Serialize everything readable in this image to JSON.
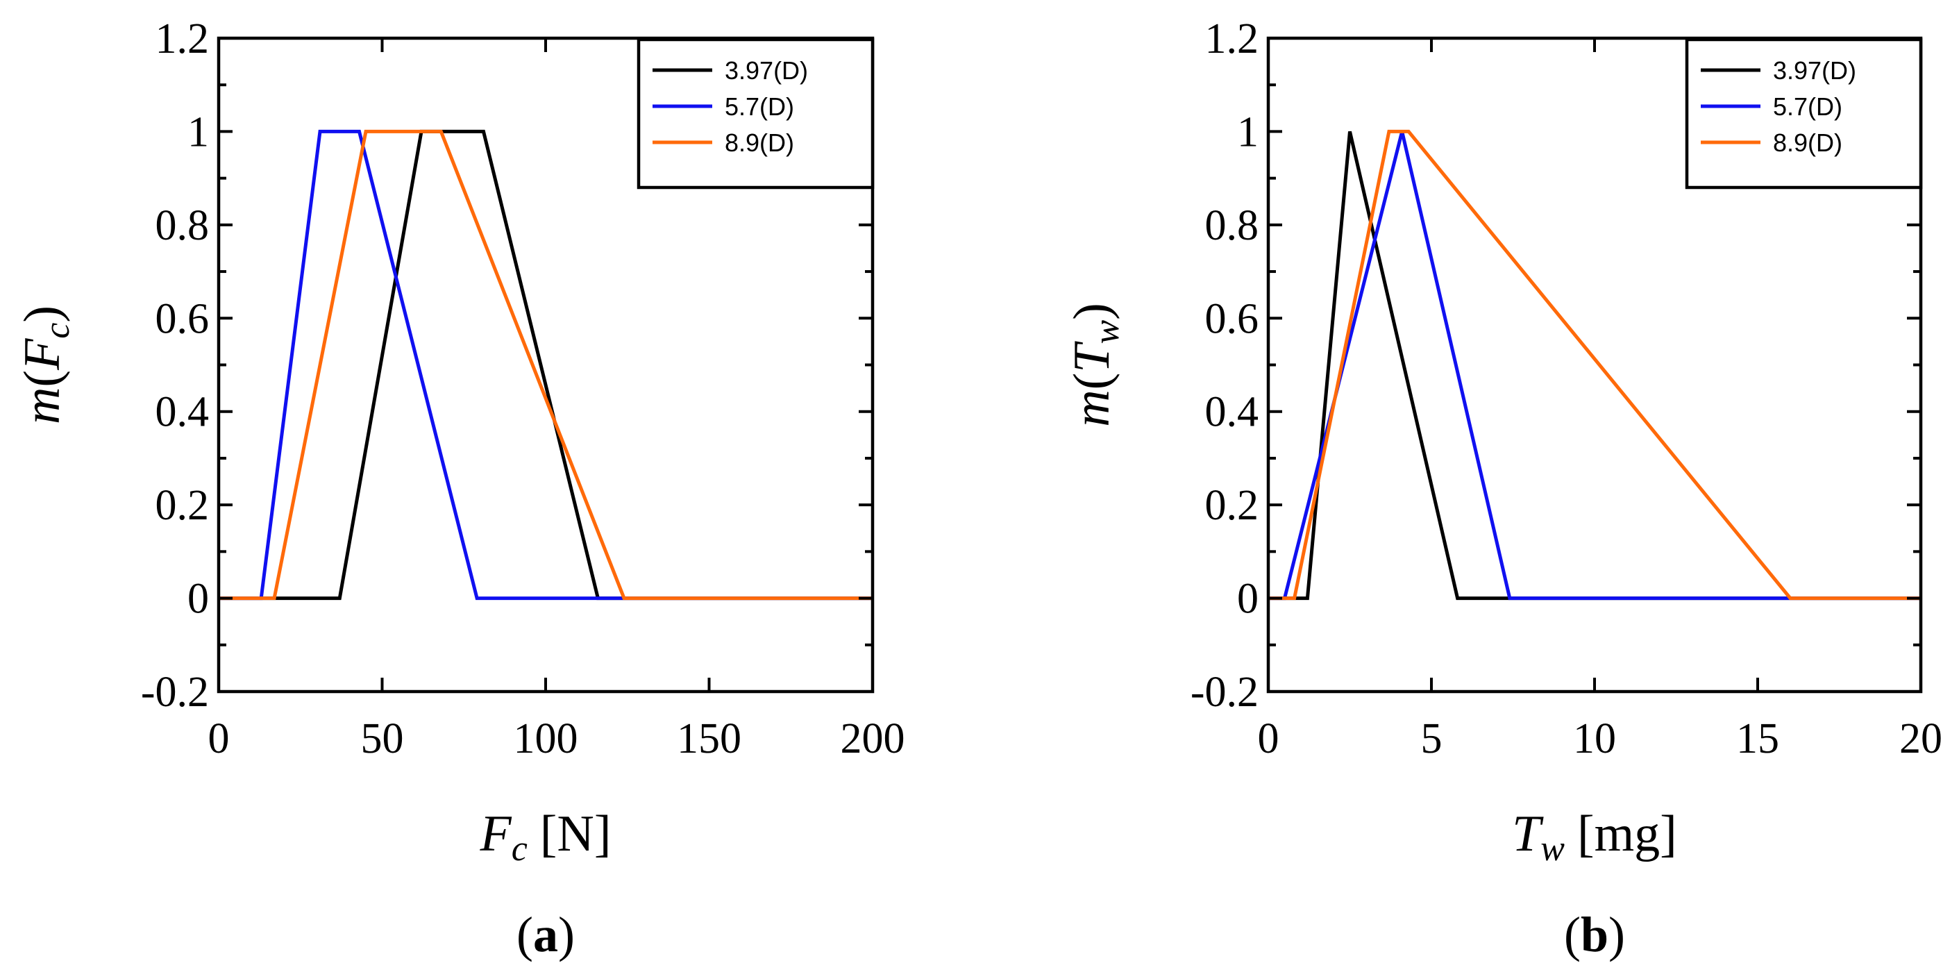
{
  "chart_data": [
    {
      "type": "line",
      "panel_label": "a",
      "xlabel_main": "F",
      "xlabel_sub": "c",
      "xlabel_unit": "[N]",
      "ylabel_func": "m",
      "ylabel_var": "F",
      "ylabel_sub": "c",
      "xlim": [
        0,
        200
      ],
      "ylim": [
        -0.2,
        1.2
      ],
      "xticks": [
        0,
        50,
        100,
        150,
        200
      ],
      "yticks": [
        -0.2,
        0,
        0.2,
        0.4,
        0.6,
        0.8,
        1,
        1.2
      ],
      "yminor": [
        -0.1,
        0.1,
        0.3,
        0.5,
        0.7,
        0.9,
        1.1
      ],
      "legend_position": "top-right",
      "series": [
        {
          "name": "3.97(D)",
          "color": "#000000",
          "x": [
            0,
            37,
            62,
            81,
            116,
            200
          ],
          "y": [
            0,
            0,
            1,
            1,
            0,
            0
          ]
        },
        {
          "name": "5.7(D)",
          "color": "#1010f0",
          "x": [
            0,
            13,
            31,
            43,
            79,
            200
          ],
          "y": [
            0,
            0,
            1,
            1,
            0,
            0
          ]
        },
        {
          "name": "8.9(D)",
          "color": "#ff6a0a",
          "x": [
            0,
            17,
            45,
            68,
            124,
            200
          ],
          "y": [
            0,
            0,
            1,
            1,
            0,
            0
          ]
        }
      ]
    },
    {
      "type": "line",
      "panel_label": "b",
      "xlabel_main": "T",
      "xlabel_sub": "w",
      "xlabel_unit": "[mg]",
      "ylabel_func": "m",
      "ylabel_var": "T",
      "ylabel_sub": "w",
      "xlim": [
        0,
        20
      ],
      "ylim": [
        -0.2,
        1.2
      ],
      "xticks": [
        0,
        5,
        10,
        15,
        20
      ],
      "yticks": [
        -0.2,
        0,
        0.2,
        0.4,
        0.6,
        0.8,
        1,
        1.2
      ],
      "yminor": [
        -0.1,
        0.1,
        0.3,
        0.5,
        0.7,
        0.9,
        1.1
      ],
      "legend_position": "top-right",
      "series": [
        {
          "name": "3.97(D)",
          "color": "#000000",
          "x": [
            0,
            1.2,
            2.5,
            5.8,
            20
          ],
          "y": [
            0,
            0,
            1,
            0,
            0
          ]
        },
        {
          "name": "5.7(D)",
          "color": "#1010f0",
          "x": [
            0,
            0.5,
            4.1,
            7.4,
            20
          ],
          "y": [
            0,
            0,
            1,
            0,
            0
          ]
        },
        {
          "name": "8.9(D)",
          "color": "#ff6a0a",
          "x": [
            0,
            0.8,
            3.7,
            4.3,
            16.0,
            20
          ],
          "y": [
            0,
            0,
            1,
            1,
            0,
            0
          ]
        }
      ]
    }
  ]
}
